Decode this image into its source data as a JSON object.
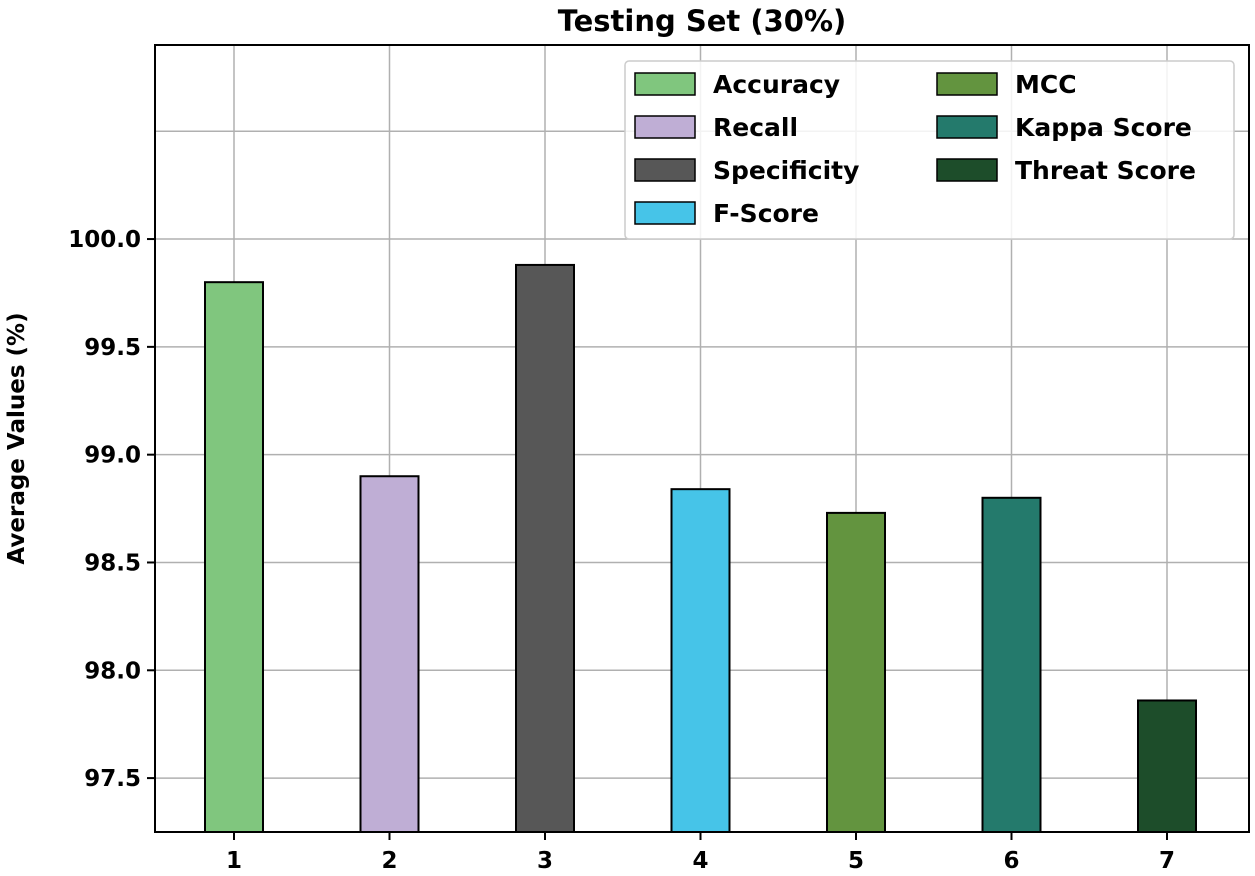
{
  "chart_data": {
    "type": "bar",
    "title": "Testing Set (30%)",
    "xlabel": "",
    "ylabel": "Average Values (%)",
    "categories": [
      "1",
      "2",
      "3",
      "4",
      "5",
      "6",
      "7"
    ],
    "series": [
      {
        "name": "Accuracy",
        "color": "#80c67e",
        "category": "1",
        "value": 99.8
      },
      {
        "name": "Recall",
        "color": "#bfaed5",
        "category": "2",
        "value": 98.9
      },
      {
        "name": "Specificity",
        "color": "#575757",
        "category": "3",
        "value": 99.88
      },
      {
        "name": "F-Score",
        "color": "#46c4e8",
        "category": "4",
        "value": 98.84
      },
      {
        "name": "MCC",
        "color": "#63943f",
        "category": "5",
        "value": 98.73
      },
      {
        "name": "Kappa Score",
        "color": "#247a6c",
        "category": "6",
        "value": 98.8
      },
      {
        "name": "Threat Score",
        "color": "#1d4d2a",
        "category": "7",
        "value": 97.86
      }
    ],
    "ylim": [
      97.25,
      100.9
    ],
    "yticks": [
      "97.5",
      "98.0",
      "98.5",
      "99.0",
      "99.5",
      "100.0"
    ],
    "grid": true,
    "legend_position": "top-right"
  }
}
